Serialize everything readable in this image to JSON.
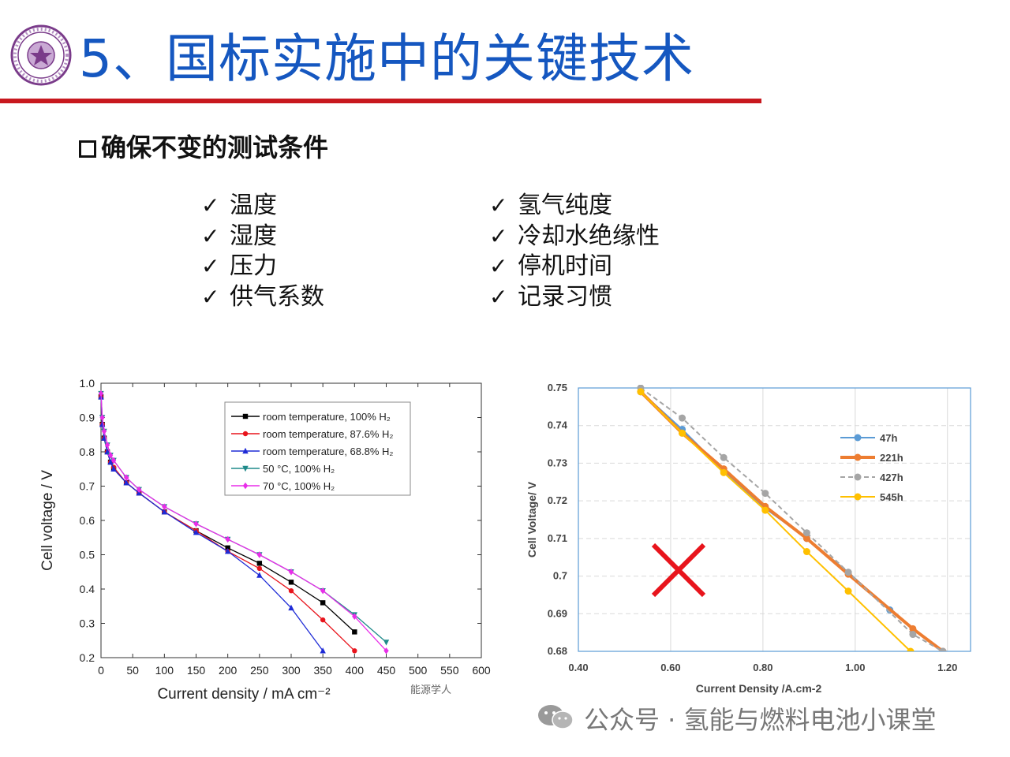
{
  "slide": {
    "title": "5、国标实施中的关键技术",
    "subtitle": "确保不变的测试条件",
    "checklist_left": [
      "温度",
      "湿度",
      "压力",
      "供气系数"
    ],
    "checklist_right": [
      "氢气纯度",
      "冷却水绝缘性",
      "停机时间",
      "记录习惯"
    ],
    "check_glyph": "✓",
    "watermark_small": "能源学人",
    "watermark": "公众号 · 氢能与燃料电池小课堂",
    "colors": {
      "title": "#1557c0",
      "rule": "#c8181e",
      "logo": "#7a3b8a",
      "cross": "#e8141c"
    }
  },
  "chart_data": [
    {
      "type": "line",
      "xlabel": "Current density / mA cm⁻²",
      "ylabel": "Cell voltage / V",
      "xlim": [
        0,
        600
      ],
      "ylim": [
        0.2,
        1.0
      ],
      "xticks": [
        0,
        50,
        100,
        150,
        200,
        250,
        300,
        350,
        400,
        450,
        500,
        550,
        600
      ],
      "xtick_labels": [
        "0",
        "50",
        "100",
        "150",
        "200",
        "250",
        "300",
        "350",
        "400",
        "450",
        "500",
        "550",
        "600"
      ],
      "yticks": [
        0.2,
        0.3,
        0.4,
        0.5,
        0.6,
        0.7,
        0.8,
        0.9,
        1.0
      ],
      "ytick_labels": [
        "0.2",
        "0.3",
        "0.4",
        "0.5",
        "0.6",
        "0.7",
        "0.8",
        "0.9",
        "1.0"
      ],
      "legend_position": "top-right",
      "series": [
        {
          "name": "room temperature, 100% H₂",
          "color": "#000000",
          "marker": "square",
          "x": [
            0,
            2,
            5,
            10,
            15,
            20,
            40,
            60,
            100,
            150,
            200,
            250,
            300,
            350,
            400
          ],
          "y": [
            0.96,
            0.88,
            0.84,
            0.8,
            0.77,
            0.75,
            0.71,
            0.68,
            0.625,
            0.57,
            0.52,
            0.475,
            0.42,
            0.36,
            0.275
          ]
        },
        {
          "name": "room temperature, 87.6% H₂",
          "color": "#e8141c",
          "marker": "circle",
          "x": [
            0,
            2,
            5,
            10,
            15,
            20,
            40,
            60,
            100,
            150,
            200,
            250,
            300,
            350,
            400
          ],
          "y": [
            0.96,
            0.88,
            0.84,
            0.8,
            0.77,
            0.755,
            0.71,
            0.68,
            0.625,
            0.57,
            0.51,
            0.46,
            0.395,
            0.31,
            0.22
          ]
        },
        {
          "name": "room temperature, 68.8% H₂",
          "color": "#1e2bd6",
          "marker": "triangle",
          "x": [
            0,
            2,
            5,
            10,
            15,
            20,
            40,
            60,
            100,
            150,
            200,
            250,
            300,
            350
          ],
          "y": [
            0.96,
            0.88,
            0.84,
            0.8,
            0.77,
            0.75,
            0.71,
            0.68,
            0.625,
            0.565,
            0.51,
            0.44,
            0.345,
            0.22
          ]
        },
        {
          "name": "50 °C, 100% H₂",
          "color": "#1f8a8a",
          "marker": "triangle-down",
          "x": [
            0,
            2,
            5,
            10,
            15,
            20,
            40,
            60,
            100,
            150,
            200,
            250,
            300,
            350,
            400,
            450
          ],
          "y": [
            0.97,
            0.9,
            0.86,
            0.82,
            0.79,
            0.775,
            0.725,
            0.69,
            0.64,
            0.59,
            0.545,
            0.5,
            0.45,
            0.395,
            0.325,
            0.245
          ]
        },
        {
          "name": "70 °C, 100% H₂",
          "color": "#e82ee8",
          "marker": "diamond",
          "x": [
            0,
            2,
            5,
            10,
            15,
            20,
            40,
            60,
            100,
            150,
            200,
            250,
            300,
            350,
            400,
            450
          ],
          "y": [
            0.97,
            0.9,
            0.86,
            0.82,
            0.79,
            0.775,
            0.725,
            0.69,
            0.64,
            0.59,
            0.545,
            0.5,
            0.45,
            0.395,
            0.32,
            0.22
          ]
        }
      ]
    },
    {
      "type": "line",
      "xlabel": "Current Density /A.cm-2",
      "ylabel": "Cell Voltage/ V",
      "xlim": [
        0.4,
        1.25
      ],
      "ylim": [
        0.68,
        0.75
      ],
      "xticks": [
        0.4,
        0.6,
        0.8,
        1.0,
        1.2
      ],
      "xtick_labels": [
        "0.40",
        "0.60",
        "0.80",
        "1.00",
        "1.20"
      ],
      "yticks": [
        0.68,
        0.69,
        0.7,
        0.71,
        0.72,
        0.73,
        0.74,
        0.75
      ],
      "ytick_labels": [
        "0.68",
        "0.69",
        "0.7",
        "0.71",
        "0.72",
        "0.73",
        "0.74",
        "0.75"
      ],
      "legend_position": "top-right",
      "grid": true,
      "annotation": "✕",
      "series": [
        {
          "name": "47h",
          "color": "#5b9bd5",
          "dash": false,
          "width": 2,
          "x": [
            0.535,
            0.625,
            0.715,
            0.805,
            0.895,
            0.985,
            1.075,
            1.19
          ],
          "y": [
            0.749,
            0.739,
            0.728,
            0.718,
            0.71,
            0.701,
            0.691,
            0.68
          ]
        },
        {
          "name": "221h",
          "color": "#ed7d31",
          "dash": false,
          "width": 4,
          "x": [
            0.535,
            0.625,
            0.715,
            0.805,
            0.895,
            0.985,
            1.125,
            1.19
          ],
          "y": [
            0.749,
            0.738,
            0.7285,
            0.7185,
            0.71,
            0.7005,
            0.686,
            0.68
          ]
        },
        {
          "name": "427h",
          "color": "#a5a5a5",
          "dash": true,
          "width": 2,
          "x": [
            0.535,
            0.625,
            0.715,
            0.805,
            0.895,
            0.985,
            1.125,
            1.19
          ],
          "y": [
            0.75,
            0.742,
            0.7315,
            0.722,
            0.7115,
            0.701,
            0.6845,
            0.68
          ]
        },
        {
          "name": "545h",
          "color": "#ffc000",
          "dash": false,
          "width": 2,
          "x": [
            0.535,
            0.625,
            0.715,
            0.805,
            0.895,
            0.985,
            1.12
          ],
          "y": [
            0.749,
            0.738,
            0.7275,
            0.7175,
            0.7065,
            0.696,
            0.68
          ]
        }
      ]
    }
  ]
}
